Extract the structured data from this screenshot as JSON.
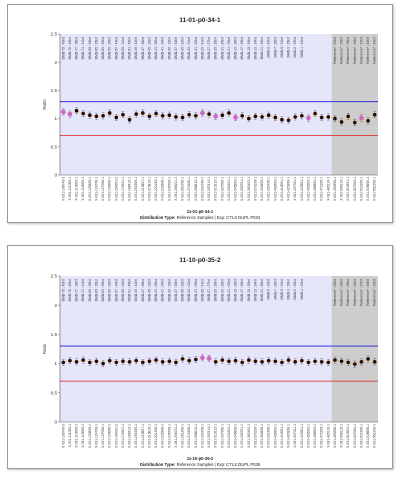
{
  "colors": {
    "sample_band": "#e6e6fb",
    "reference_band": "#cdcdcd",
    "blue_line": "#1a1ad6",
    "red_line": "#e01b1b",
    "yellow_line": "#e8c400",
    "point": "#2a0808",
    "highlight": "#cc66cc"
  },
  "chart_data": [
    {
      "type": "scatter",
      "title": "11-01-p0-34-1",
      "subtitle": "11-01-p0-34-1",
      "caption_label": "Distribution Type:",
      "caption_value": "Reference Samples | Exp: CTLS DUPL P034",
      "ylabel": "Ratio",
      "ylim": [
        0,
        2.5
      ],
      "yticks": [
        0,
        0.5,
        1,
        1.5,
        2,
        2.5
      ],
      "hlines": {
        "blue": 1.3,
        "red": 0.7
      },
      "reference_start_index": 41,
      "top_labels": [
        "DMD-79 : 45Int",
        "DMD-78 : 45Int",
        "DMD-77 : 38Int",
        "DMD-71 : 41Int",
        "DMD-69 : 39Int",
        "DMD-65 : 35Int",
        "DMD-63 : 30Int",
        "DMD-59 : 30Int",
        "DMD-57 : 44Int",
        "DMD-55 : 31Int",
        "DMD-51 : 45Int",
        "DMD-49 : 42Int",
        "DMD-47 : 36Int",
        "DMD-45 : 33Int",
        "DMD-43 : 28Int",
        "DMD-41 : 24Int",
        "DMD-39 : 22Int",
        "DMD-37 : 30Int",
        "DMD-35 : 33Int",
        "DMD-33 : 31Int",
        "DMD-31 : 25Int",
        "DMD-29 : 41Int",
        "DMD-27 : 27Int",
        "DMD-25 : 26Int",
        "DMD-23 : 25Int",
        "DMD-21 : 33Int",
        "DMD-19 : 36Int",
        "DMD-17 : 29Int",
        "DMD-15 : 30Int",
        "DMD-13 : 24Int",
        "DMD-11 : 28Int",
        "DMD-9 : 42Int",
        "DMD-7 : 28Int",
        "DMD-5 : 31Int",
        "DMD-3 : 29Int",
        "DMD-2 : 32Int",
        "DMD-1 : 42Int",
        "",
        "",
        "",
        "",
        "Reference* : 23Int",
        "Reference* : 33Int",
        "Reference* : 39Int",
        "Reference* : 34Int",
        "Reference* : 37Int",
        "Reference* : 40Int",
        "Reference* : 43Int"
      ],
      "x_labels": [
        "X-031-106749-3",
        "X-031-111005-1",
        "X-031-113005-1",
        "X-031-118005-1",
        "X-031-120805-1",
        "X-031-124706-1",
        "X-031-127006-1",
        "X-031-130006-1",
        "X-031-164001-2",
        "X-031-178401-1",
        "X-031-186412-1",
        "X-031-201509-1",
        "X-031-210607-1",
        "X-031-215810-1",
        "X-031-221450-1",
        "X-031-232908-1",
        "X-031-245700-1",
        "X-031-256211-1",
        "X-031-261208-1",
        "X-031-274406-1",
        "X-031-286812-1",
        "X-031-293708-1",
        "X-031-307814-1",
        "X-031-310212-1",
        "X-031-327006-1",
        "X-031-331601-1",
        "X-031-345900-1",
        "X-031-358701-1",
        "X-031-362402-1",
        "X-031-378100-1",
        "X-031-384605-1",
        "X-031-391406-1",
        "X-031-402603-1",
        "X-031-418001-1",
        "X-031-420306-1",
        "X-031-437011-1",
        "X-031-443501-1",
        "X-031-452002-1",
        "X-031-466803-1",
        "X-031-471905-1",
        "X-031-485116-1",
        "X-031-490306-1",
        "X-031-508110-1",
        "X-031-512601-1",
        "X-031-527004-1",
        "X-031-531900-1",
        "X-031-545606-1",
        "X-031-552109-1"
      ],
      "y": [
        1.12,
        1.08,
        1.14,
        1.09,
        1.06,
        1.04,
        1.05,
        1.1,
        1.02,
        1.07,
        0.98,
        1.08,
        1.1,
        1.04,
        1.09,
        1.05,
        1.06,
        1.03,
        1.02,
        1.07,
        1.05,
        1.1,
        1.08,
        1.04,
        1.06,
        1.1,
        1.02,
        1.05,
        1.0,
        1.04,
        1.03,
        1.06,
        1.02,
        0.98,
        0.97,
        1.03,
        1.05,
        1.01,
        1.09,
        1.02,
        1.03,
        1.0,
        0.94,
        1.04,
        0.93,
        1.01,
        0.96,
        1.07
      ],
      "highlight": [
        0,
        1,
        21,
        23,
        26,
        37,
        45
      ]
    },
    {
      "type": "scatter",
      "title": "11-10-p0-35-2",
      "subtitle": "11-10-p0-35-2",
      "caption_label": "Distribution Type:",
      "caption_value": "Reference Samples | Exp: CTLS DUPL P035",
      "ylabel": "Ratio",
      "ylim": [
        0,
        2.5
      ],
      "yticks": [
        0,
        0.5,
        1,
        1.5,
        2,
        2.5
      ],
      "hlines": {
        "blue": 1.3,
        "red": 0.7
      },
      "reference_start_index": 41,
      "top_labels": [
        "DMD-79 : 45Int",
        "DMD-78 : 45Int",
        "DMD-77 : 38Int",
        "DMD-71 : 41Int",
        "DMD-69 : 39Int",
        "DMD-65 : 35Int",
        "DMD-63 : 30Int",
        "DMD-59 : 30Int",
        "DMD-57 : 44Int",
        "DMD-55 : 31Int",
        "DMD-51 : 45Int",
        "DMD-49 : 42Int",
        "DMD-47 : 36Int",
        "DMD-45 : 33Int",
        "DMD-43 : 28Int",
        "DMD-41 : 24Int",
        "DMD-39 : 22Int",
        "DMD-37 : 30Int",
        "DMD-35 : 33Int",
        "DMD-33 : 31Int",
        "DMD-31 : 25Int",
        "DMD-29 : 41Int",
        "DMD-27 : 27Int",
        "DMD-25 : 26Int",
        "DMD-23 : 25Int",
        "DMD-21 : 33Int",
        "DMD-19 : 36Int",
        "DMD-17 : 29Int",
        "DMD-15 : 30Int",
        "DMD-13 : 24Int",
        "DMD-11 : 28Int",
        "DMD-9 : 42Int",
        "DMD-7 : 28Int",
        "DMD-5 : 31Int",
        "DMD-3 : 29Int",
        "DMD-2 : 32Int",
        "DMD-1 : 42Int",
        "",
        "",
        "",
        "",
        "Reference* : 23Int",
        "Reference* : 33Int",
        "Reference* : 39Int",
        "Reference* : 34Int",
        "Reference* : 37Int",
        "Reference* : 40Int",
        "Reference* : 43Int"
      ],
      "x_labels": [
        "X-031-106749-3",
        "X-031-111005-1",
        "X-031-113005-1",
        "X-031-118005-1",
        "X-031-120805-1",
        "X-031-124706-1",
        "X-031-127006-1",
        "X-031-130006-1",
        "X-031-164001-2",
        "X-031-178401-1",
        "X-031-186412-1",
        "X-031-201509-1",
        "X-031-210607-1",
        "X-031-215810-1",
        "X-031-221450-1",
        "X-031-232908-1",
        "X-031-245700-1",
        "X-031-256211-1",
        "X-031-261208-1",
        "X-031-274406-1",
        "X-031-286812-1",
        "X-031-293708-1",
        "X-031-307814-1",
        "X-031-310212-1",
        "X-031-327006-1",
        "X-031-331601-1",
        "X-031-345900-1",
        "X-031-358701-1",
        "X-031-362402-1",
        "X-031-378100-1",
        "X-031-384605-1",
        "X-031-391406-1",
        "X-031-402603-1",
        "X-031-418001-1",
        "X-031-420306-1",
        "X-031-437011-1",
        "X-031-443501-1",
        "X-031-452002-1",
        "X-031-466803-1",
        "X-031-471905-1",
        "X-031-485116-1",
        "X-031-490306-1",
        "X-031-508110-1",
        "X-031-512601-1",
        "X-031-527004-1",
        "X-031-531900-1",
        "X-031-545606-1",
        "X-031-552109-1"
      ],
      "y": [
        1.02,
        1.05,
        1.03,
        1.06,
        1.02,
        1.04,
        1.0,
        1.05,
        1.02,
        1.04,
        1.03,
        1.05,
        1.02,
        1.04,
        1.06,
        1.03,
        1.04,
        1.02,
        1.08,
        1.05,
        1.07,
        1.1,
        1.09,
        1.03,
        1.06,
        1.04,
        1.05,
        1.02,
        1.06,
        1.04,
        1.03,
        1.05,
        1.04,
        1.02,
        1.06,
        1.03,
        1.05,
        1.02,
        1.04,
        1.03,
        1.02,
        1.06,
        1.04,
        1.02,
        0.99,
        1.03,
        1.08,
        1.03
      ],
      "highlight": [
        21,
        22
      ]
    }
  ]
}
